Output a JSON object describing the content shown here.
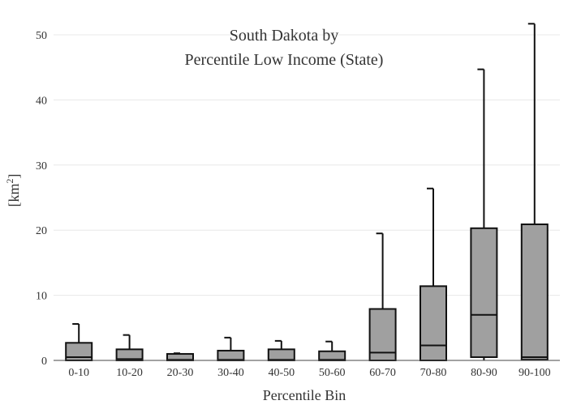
{
  "chart_data": {
    "type": "box",
    "title_line1": "South Dakota  by",
    "title_line2": "Percentile Low Income (State)",
    "xlabel": "Percentile Bin",
    "ylabel_base": "[km",
    "ylabel_sup": "2",
    "ylabel_end": "]",
    "ylim": [
      0,
      52
    ],
    "yticks": [
      0,
      10,
      20,
      30,
      40,
      50
    ],
    "grid": true,
    "categories": [
      "0-10",
      "10-20",
      "20-30",
      "30-40",
      "40-50",
      "50-60",
      "60-70",
      "70-80",
      "80-90",
      "90-100"
    ],
    "boxes": [
      {
        "min": 0,
        "q1": 0,
        "median": 0.5,
        "q3": 2.7,
        "max": 5.6
      },
      {
        "min": 0,
        "q1": 0,
        "median": 0.2,
        "q3": 1.7,
        "max": 3.9
      },
      {
        "min": 0,
        "q1": 0,
        "median": 0.1,
        "q3": 1.0,
        "max": 1.1
      },
      {
        "min": 0,
        "q1": 0,
        "median": 0.1,
        "q3": 1.5,
        "max": 3.5
      },
      {
        "min": 0,
        "q1": 0,
        "median": 0.1,
        "q3": 1.7,
        "max": 3.0
      },
      {
        "min": 0,
        "q1": 0,
        "median": 0.1,
        "q3": 1.4,
        "max": 2.9
      },
      {
        "min": 0,
        "q1": 0,
        "median": 1.2,
        "q3": 7.9,
        "max": 19.5
      },
      {
        "min": 0,
        "q1": 0,
        "median": 2.3,
        "q3": 11.4,
        "max": 26.4
      },
      {
        "min": 0,
        "q1": 0.5,
        "median": 7.0,
        "q3": 20.3,
        "max": 44.7
      },
      {
        "min": 0,
        "q1": 0.1,
        "median": 0.5,
        "q3": 20.9,
        "max": 51.7
      }
    ],
    "colors": {
      "box_fill": "#a0a0a0",
      "box_stroke": "#111111",
      "grid": "#e8e8e8"
    }
  }
}
